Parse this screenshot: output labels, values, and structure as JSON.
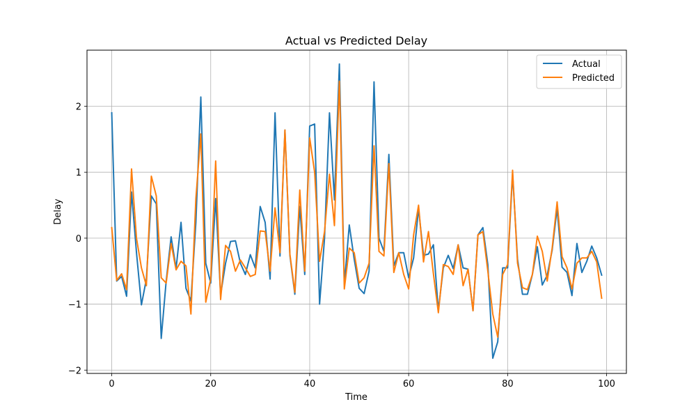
{
  "chart_data": {
    "type": "line",
    "title": "Actual vs Predicted Delay",
    "xlabel": "Time",
    "ylabel": "Delay",
    "xlim": [
      -5,
      104
    ],
    "ylim": [
      -2.05,
      2.85
    ],
    "xticks": [
      0,
      20,
      40,
      60,
      80,
      100
    ],
    "yticks": [
      -2,
      -1,
      0,
      1,
      2
    ],
    "grid": true,
    "legend_position": "top-right",
    "x": [
      0,
      1,
      2,
      3,
      4,
      5,
      6,
      7,
      8,
      9,
      10,
      11,
      12,
      13,
      14,
      15,
      16,
      17,
      18,
      19,
      20,
      21,
      22,
      23,
      24,
      25,
      26,
      27,
      28,
      29,
      30,
      31,
      32,
      33,
      34,
      35,
      36,
      37,
      38,
      39,
      40,
      41,
      42,
      43,
      44,
      45,
      46,
      47,
      48,
      49,
      50,
      51,
      52,
      53,
      54,
      55,
      56,
      57,
      58,
      59,
      60,
      61,
      62,
      63,
      64,
      65,
      66,
      67,
      68,
      69,
      70,
      71,
      72,
      73,
      74,
      75,
      76,
      77,
      78,
      79,
      80,
      81,
      82,
      83,
      84,
      85,
      86,
      87,
      88,
      89,
      90,
      91,
      92,
      93,
      94,
      95,
      96,
      97,
      98,
      99
    ],
    "series": [
      {
        "name": "Actual",
        "color": "#1f77b4",
        "values": [
          1.9,
          -0.65,
          -0.58,
          -0.88,
          0.7,
          -0.22,
          -1.01,
          -0.62,
          0.64,
          0.52,
          -1.52,
          -0.65,
          0.02,
          -0.46,
          0.24,
          -0.76,
          -0.95,
          0.24,
          2.14,
          -0.38,
          -0.68,
          0.6,
          -0.86,
          -0.38,
          -0.05,
          -0.04,
          -0.38,
          -0.55,
          -0.25,
          -0.45,
          0.48,
          0.24,
          -0.62,
          1.9,
          -0.27,
          1.64,
          -0.26,
          -0.85,
          0.48,
          -0.55,
          1.7,
          1.73,
          -1.0,
          0.0,
          1.9,
          0.58,
          2.64,
          -0.7,
          0.2,
          -0.32,
          -0.76,
          -0.84,
          -0.5,
          2.37,
          0.0,
          -0.2,
          1.27,
          -0.42,
          -0.22,
          -0.22,
          -0.6,
          -0.3,
          0.45,
          -0.26,
          -0.24,
          -0.1,
          -1.1,
          -0.45,
          -0.26,
          -0.46,
          -0.1,
          -0.45,
          -0.47,
          -1.1,
          0.05,
          0.16,
          -0.4,
          -1.82,
          -1.57,
          -0.45,
          -0.45,
          0.98,
          -0.32,
          -0.85,
          -0.85,
          -0.55,
          -0.13,
          -0.71,
          -0.56,
          -0.18,
          0.45,
          -0.44,
          -0.52,
          -0.87,
          -0.08,
          -0.52,
          -0.35,
          -0.12,
          -0.3,
          -0.56
        ]
      },
      {
        "name": "Predicted",
        "color": "#ff7f0e",
        "values": [
          0.16,
          -0.64,
          -0.54,
          -0.78,
          1.05,
          0.0,
          -0.45,
          -0.72,
          0.94,
          0.64,
          -0.6,
          -0.68,
          -0.08,
          -0.48,
          -0.35,
          -0.42,
          -1.15,
          0.6,
          1.58,
          -0.97,
          -0.62,
          1.17,
          -0.93,
          -0.11,
          -0.2,
          -0.5,
          -0.33,
          -0.45,
          -0.58,
          -0.55,
          0.11,
          0.1,
          -0.5,
          0.46,
          -0.22,
          1.64,
          -0.24,
          -0.82,
          0.73,
          -0.5,
          1.52,
          1.0,
          -0.35,
          0.1,
          0.97,
          0.19,
          2.38,
          -0.77,
          -0.15,
          -0.22,
          -0.68,
          -0.6,
          -0.38,
          1.4,
          -0.2,
          -0.27,
          1.13,
          -0.52,
          -0.22,
          -0.55,
          -0.77,
          0.05,
          0.5,
          -0.36,
          0.1,
          -0.54,
          -1.13,
          -0.4,
          -0.43,
          -0.55,
          -0.1,
          -0.72,
          -0.47,
          -1.1,
          0.05,
          0.1,
          -0.5,
          -1.15,
          -1.5,
          -0.55,
          -0.4,
          1.03,
          -0.38,
          -0.75,
          -0.78,
          -0.55,
          0.03,
          -0.2,
          -0.65,
          -0.15,
          0.55,
          -0.28,
          -0.45,
          -0.77,
          -0.38,
          -0.3,
          -0.3,
          -0.2,
          -0.36,
          -0.91
        ]
      }
    ]
  }
}
